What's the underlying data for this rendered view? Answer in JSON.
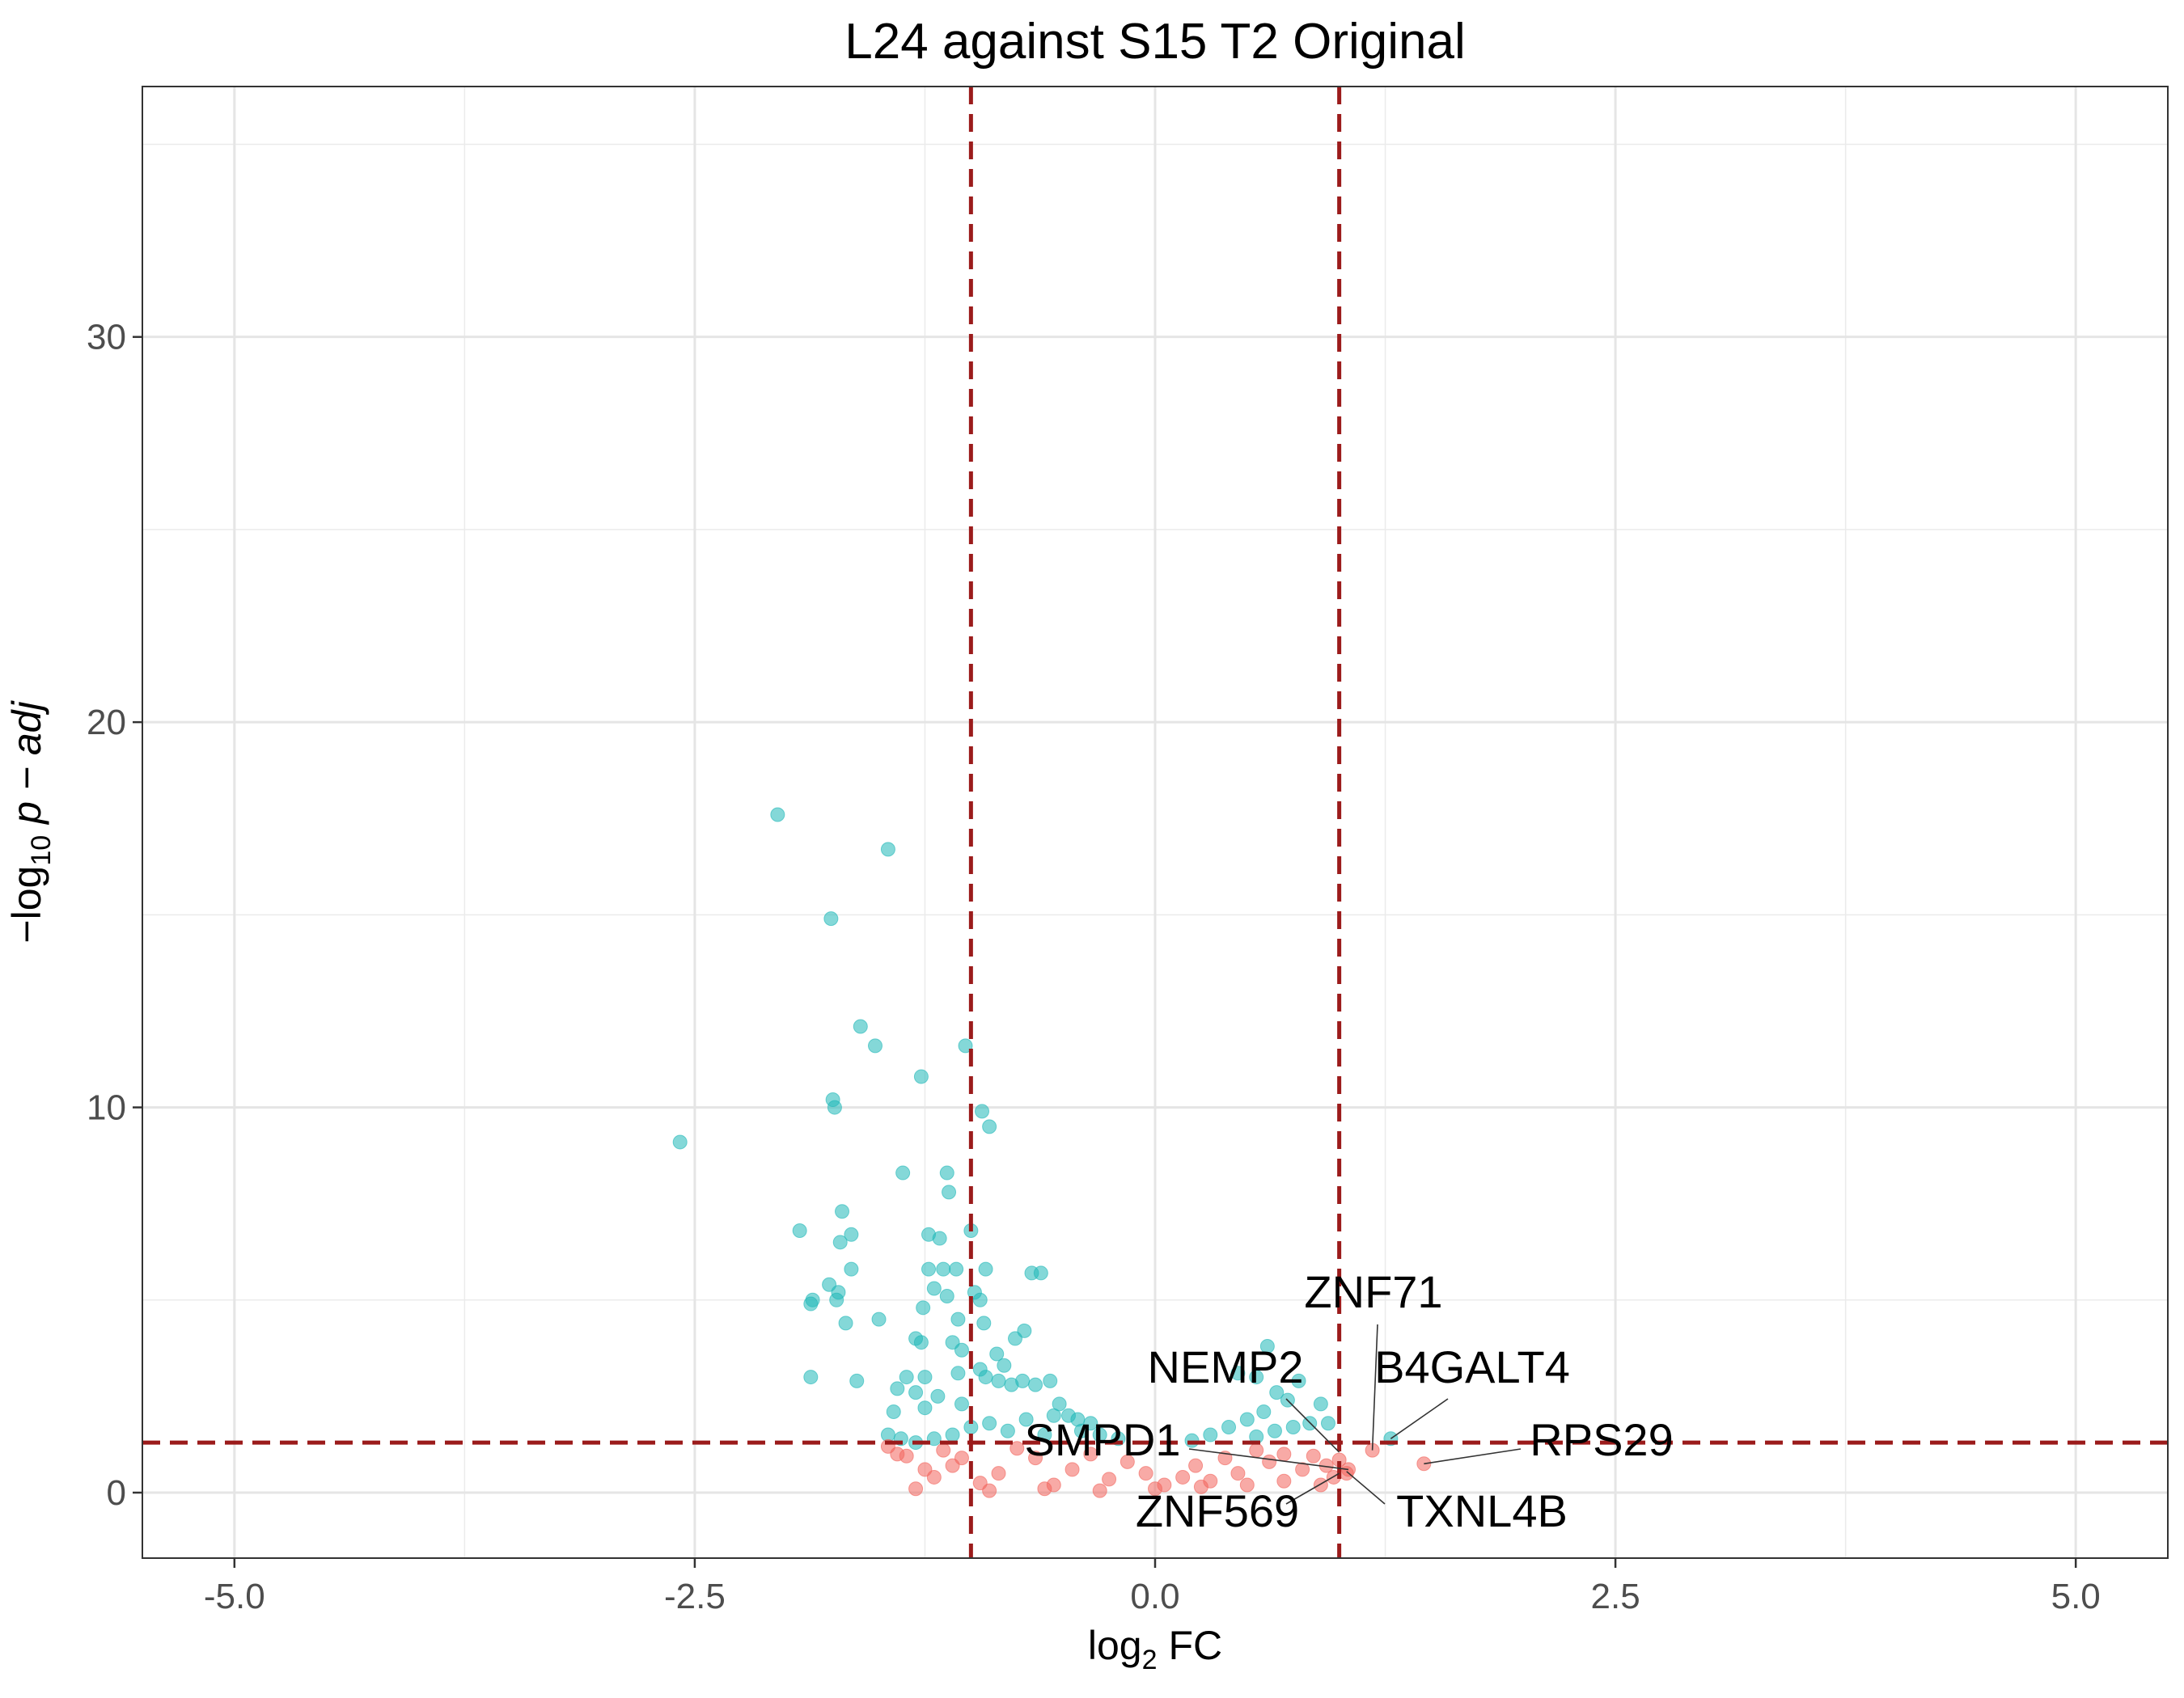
{
  "chart_data": {
    "type": "scatter",
    "title": "L24 against S15 T2 Original",
    "xlabel": {
      "prefix": "log",
      "sub": "2",
      "suffix": " FC"
    },
    "ylabel": {
      "prefix": "−log",
      "sub": "10",
      "suffix": " p − adj"
    },
    "xlim": [
      -5.5,
      5.5
    ],
    "ylim": [
      -1.7,
      36.5
    ],
    "x_ticks": [
      -5.0,
      -2.5,
      0.0,
      2.5,
      5.0
    ],
    "x_tick_labels": [
      "-5.0",
      "-2.5",
      "0.0",
      "2.5",
      "5.0"
    ],
    "y_ticks": [
      0,
      10,
      20,
      30
    ],
    "y_tick_labels": [
      "0",
      "10",
      "20",
      "30"
    ],
    "grid": true,
    "thresholds": {
      "vertical": [
        -1,
        1
      ],
      "horizontal": 1.3,
      "color": "#9b1b1b"
    },
    "series": [
      {
        "color": "#1fb8b8",
        "points": [
          [
            -2.58,
            9.1
          ],
          [
            -2.05,
            17.6
          ],
          [
            -1.76,
            14.9
          ],
          [
            -1.75,
            10.2
          ],
          [
            -1.74,
            10.0
          ],
          [
            -1.6,
            12.1
          ],
          [
            -1.52,
            11.6
          ],
          [
            -1.45,
            16.7
          ],
          [
            -1.03,
            11.6
          ],
          [
            -1.27,
            10.8
          ],
          [
            -0.94,
            9.9
          ],
          [
            -0.9,
            9.5
          ],
          [
            -1.37,
            8.3
          ],
          [
            -1.13,
            8.3
          ],
          [
            -1.12,
            7.8
          ],
          [
            -1.7,
            7.3
          ],
          [
            -1.93,
            6.8
          ],
          [
            -1.71,
            6.5
          ],
          [
            -1.65,
            6.7
          ],
          [
            -1.23,
            6.7
          ],
          [
            -1.17,
            6.6
          ],
          [
            -1.0,
            6.8
          ],
          [
            -1.65,
            5.8
          ],
          [
            -1.23,
            5.8
          ],
          [
            -1.15,
            5.8
          ],
          [
            -1.08,
            5.8
          ],
          [
            -0.92,
            5.8
          ],
          [
            -0.67,
            5.7
          ],
          [
            -0.62,
            5.7
          ],
          [
            -1.77,
            5.4
          ],
          [
            -1.72,
            5.2
          ],
          [
            -1.73,
            5.0
          ],
          [
            -1.86,
            5.0
          ],
          [
            -1.87,
            4.9
          ],
          [
            -1.2,
            5.3
          ],
          [
            -1.13,
            5.1
          ],
          [
            -0.98,
            5.2
          ],
          [
            -0.95,
            5.0
          ],
          [
            -1.26,
            4.8
          ],
          [
            -1.5,
            4.5
          ],
          [
            -1.68,
            4.4
          ],
          [
            -1.07,
            4.5
          ],
          [
            -0.93,
            4.4
          ],
          [
            -0.71,
            4.2
          ],
          [
            -0.76,
            4.0
          ],
          [
            -1.3,
            4.0
          ],
          [
            -1.27,
            3.9
          ],
          [
            -1.1,
            3.9
          ],
          [
            -1.05,
            3.7
          ],
          [
            -0.86,
            3.6
          ],
          [
            -0.82,
            3.3
          ],
          [
            -0.95,
            3.2
          ],
          [
            -1.35,
            3.0
          ],
          [
            -1.25,
            3.0
          ],
          [
            -1.07,
            3.1
          ],
          [
            -0.92,
            3.0
          ],
          [
            -0.85,
            2.9
          ],
          [
            -0.78,
            2.8
          ],
          [
            -0.72,
            2.9
          ],
          [
            -0.65,
            2.8
          ],
          [
            -0.57,
            2.9
          ],
          [
            -1.87,
            3.0
          ],
          [
            -1.62,
            2.9
          ],
          [
            -1.4,
            2.7
          ],
          [
            -1.3,
            2.6
          ],
          [
            -1.18,
            2.5
          ],
          [
            -1.05,
            2.3
          ],
          [
            -1.25,
            2.2
          ],
          [
            -1.42,
            2.1
          ],
          [
            -0.52,
            2.3
          ],
          [
            -0.47,
            2.0
          ],
          [
            -0.42,
            1.9
          ],
          [
            -1.45,
            1.5
          ],
          [
            -1.38,
            1.4
          ],
          [
            -1.3,
            1.3
          ],
          [
            0.61,
            3.8
          ],
          [
            0.45,
            3.1
          ],
          [
            0.55,
            3.0
          ],
          [
            0.78,
            2.9
          ],
          [
            0.66,
            2.6
          ],
          [
            0.72,
            2.4
          ],
          [
            0.9,
            2.3
          ],
          [
            0.59,
            2.1
          ],
          [
            0.84,
            1.8
          ],
          [
            0.94,
            1.8
          ],
          [
            1.28,
            1.4
          ],
          [
            0.5,
            1.9
          ],
          [
            0.4,
            1.7
          ],
          [
            0.3,
            1.5
          ],
          [
            0.65,
            1.6
          ],
          [
            0.75,
            1.7
          ],
          [
            0.55,
            1.45
          ],
          [
            0.2,
            1.35
          ],
          [
            -0.2,
            1.4
          ],
          [
            -0.3,
            1.5
          ],
          [
            -0.4,
            1.6
          ],
          [
            -0.6,
            1.5
          ],
          [
            -0.8,
            1.6
          ],
          [
            -1.0,
            1.7
          ],
          [
            -1.1,
            1.5
          ],
          [
            -1.2,
            1.4
          ],
          [
            -0.9,
            1.8
          ],
          [
            -0.7,
            1.9
          ],
          [
            -0.55,
            2.0
          ],
          [
            -0.35,
            1.8
          ]
        ]
      },
      {
        "color": "#f2645c",
        "points": [
          [
            1.46,
            0.75
          ],
          [
            1.18,
            1.1
          ],
          [
            1.0,
            0.85
          ],
          [
            1.05,
            0.6
          ],
          [
            1.04,
            0.5
          ],
          [
            0.97,
            0.4
          ],
          [
            0.93,
            0.7
          ],
          [
            0.86,
            0.95
          ],
          [
            0.8,
            0.6
          ],
          [
            0.7,
            1.0
          ],
          [
            0.62,
            0.8
          ],
          [
            0.55,
            1.1
          ],
          [
            0.45,
            0.5
          ],
          [
            0.38,
            0.9
          ],
          [
            0.3,
            0.3
          ],
          [
            0.22,
            0.7
          ],
          [
            0.15,
            0.4
          ],
          [
            0.05,
            0.2
          ],
          [
            -0.05,
            0.5
          ],
          [
            -0.15,
            0.8
          ],
          [
            -0.25,
            0.35
          ],
          [
            -0.35,
            1.0
          ],
          [
            -0.45,
            0.6
          ],
          [
            -0.55,
            0.2
          ],
          [
            -0.65,
            0.9
          ],
          [
            -0.75,
            1.15
          ],
          [
            -0.85,
            0.5
          ],
          [
            -0.95,
            0.25
          ],
          [
            -1.05,
            0.9
          ],
          [
            -1.15,
            1.1
          ],
          [
            -1.25,
            0.6
          ],
          [
            -1.35,
            0.95
          ],
          [
            -1.45,
            1.2
          ],
          [
            -1.3,
            0.1
          ],
          [
            -1.2,
            0.4
          ],
          [
            -0.9,
            0.05
          ],
          [
            -0.6,
            0.1
          ],
          [
            -0.3,
            0.05
          ],
          [
            0.0,
            0.1
          ],
          [
            0.25,
            0.15
          ],
          [
            0.5,
            0.2
          ],
          [
            0.7,
            0.3
          ],
          [
            0.9,
            0.2
          ],
          [
            -1.4,
            1.0
          ],
          [
            -1.1,
            0.7
          ]
        ]
      }
    ],
    "labels": [
      {
        "text": "ZNF71",
        "x": 1.18,
        "y": 1.1
      },
      {
        "text": "NEMP2",
        "x": 1.0,
        "y": 1.05
      },
      {
        "text": "B4GALT4",
        "x": 1.28,
        "y": 1.4
      },
      {
        "text": "RPS29",
        "x": 1.46,
        "y": 0.75
      },
      {
        "text": "SMPD1",
        "x": 1.05,
        "y": 0.6
      },
      {
        "text": "ZNF569",
        "x": 1.0,
        "y": 0.5
      },
      {
        "text": "TXNL4B",
        "x": 1.04,
        "y": 0.55
      }
    ]
  }
}
